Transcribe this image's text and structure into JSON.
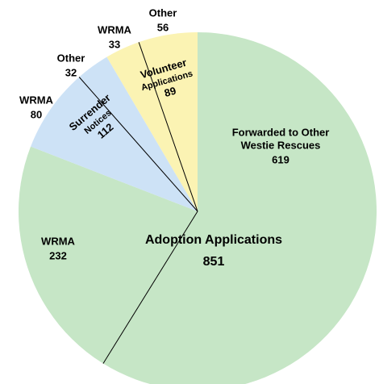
{
  "chart_data": {
    "type": "pie",
    "slices": [
      {
        "name": [
          "Adoption Applications"
        ],
        "value": 851,
        "color": "#c6e6c6",
        "parts": [
          {
            "name": [
              "Forwarded to Other",
              "Westie Rescues"
            ],
            "value": 619
          },
          {
            "name": [
              "WRMA"
            ],
            "value": 232
          }
        ]
      },
      {
        "name": [
          "Surrender",
          "Notices"
        ],
        "value": 112,
        "color": "#cde2f6",
        "parts": [
          {
            "name": [
              "WRMA"
            ],
            "value": 80
          },
          {
            "name": [
              "Other"
            ],
            "value": 32
          }
        ]
      },
      {
        "name": [
          "Volunteer",
          "Applications"
        ],
        "value": 89,
        "color": "#fbf3b3",
        "parts": [
          {
            "name": [
              "WRMA"
            ],
            "value": 33
          },
          {
            "name": [
              "Other"
            ],
            "value": 56
          }
        ]
      }
    ]
  }
}
